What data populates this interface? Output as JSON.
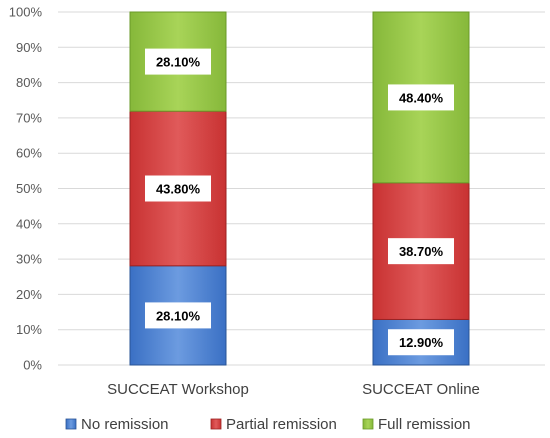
{
  "chart_data": {
    "type": "bar",
    "stacked": true,
    "title": "",
    "xlabel": "",
    "ylabel": "",
    "categories": [
      "SUCCEAT Workshop",
      "SUCCEAT Online"
    ],
    "series": [
      {
        "name": "No remission",
        "values": [
          28.1,
          12.9
        ],
        "labels": [
          "28.10%",
          "12.90%"
        ],
        "color": "#3a70c4",
        "color_light": "#6c9be0",
        "color_dark": "#2a5496"
      },
      {
        "name": "Partial remission",
        "values": [
          43.8,
          38.7
        ],
        "labels": [
          "43.80%",
          "38.70%"
        ],
        "color": "#c83232",
        "color_light": "#e05a5a",
        "color_dark": "#9c2222"
      },
      {
        "name": "Full remission",
        "values": [
          28.1,
          48.4
        ],
        "labels": [
          "28.10%",
          "48.40%"
        ],
        "color": "#86b83a",
        "color_light": "#a8d458",
        "color_dark": "#6a9a28"
      }
    ],
    "ylim": [
      0,
      100
    ],
    "yticks": [
      0,
      10,
      20,
      30,
      40,
      50,
      60,
      70,
      80,
      90,
      100
    ],
    "ytick_labels": [
      "0%",
      "10%",
      "20%",
      "30%",
      "40%",
      "50%",
      "60%",
      "70%",
      "80%",
      "90%",
      "100%"
    ],
    "grid": true,
    "legend_position": "bottom"
  }
}
